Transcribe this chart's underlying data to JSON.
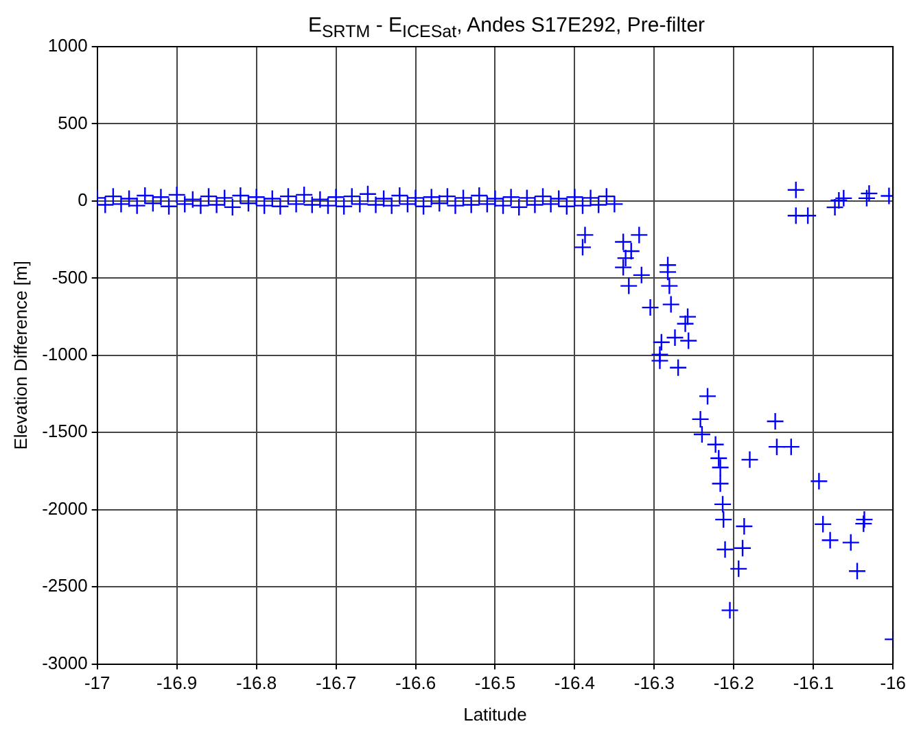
{
  "chart_data": {
    "type": "scatter",
    "title": "E$_{SRTM}$ - E$_{ICESat}$, Andes S17E292, Pre-filter",
    "xlabel": "Latitude",
    "ylabel": "Elevation Difference [m]",
    "xlim": [
      -17,
      -16
    ],
    "xticks": [
      -17,
      -16.9,
      -16.8,
      -16.7,
      -16.6,
      -16.5,
      -16.4,
      -16.3,
      -16.2,
      -16.1,
      -16
    ],
    "ylim": [
      -3000,
      1000
    ],
    "yticks": [
      -3000,
      -2500,
      -2000,
      -1500,
      -1000,
      -500,
      0,
      500,
      1000
    ],
    "grid": true,
    "marker": "cross",
    "legend": false,
    "series": [
      {
        "color": "#0000ff",
        "x": [
          -17,
          -16.99,
          -16.98,
          -16.97,
          -16.96,
          -16.95,
          -16.94,
          -16.93,
          -16.92,
          -16.91,
          -16.9,
          -16.89,
          -16.88,
          -16.87,
          -16.86,
          -16.85,
          -16.84,
          -16.83,
          -16.82,
          -16.81,
          -16.8,
          -16.79,
          -16.78,
          -16.77,
          -16.76,
          -16.75,
          -16.74,
          -16.73,
          -16.72,
          -16.71,
          -16.7,
          -16.69,
          -16.68,
          -16.67,
          -16.66,
          -16.65,
          -16.64,
          -16.63,
          -16.62,
          -16.61,
          -16.6,
          -16.59,
          -16.58,
          -16.57,
          -16.56,
          -16.55,
          -16.54,
          -16.53,
          -16.52,
          -16.51,
          -16.5,
          -16.49,
          -16.48,
          -16.47,
          -16.46,
          -16.45,
          -16.44,
          -16.43,
          -16.42,
          -16.41,
          -16.4,
          -16.39,
          -16.38,
          -16.37,
          -16.36,
          -16.35,
          -16.387,
          -16.39,
          -16.339,
          -16.319,
          -16.329,
          -16.336,
          -16.339,
          -16.316,
          -16.332,
          -16.283,
          -16.283,
          -16.281,
          -16.305,
          -16.279,
          -16.261,
          -16.258,
          -16.274,
          -16.257,
          -16.291,
          -16.293,
          -16.293,
          -16.27,
          -16.233,
          -16.242,
          -16.24,
          -16.223,
          -16.219,
          -16.217,
          -16.217,
          -16.214,
          -16.213,
          -16.211,
          -16.205,
          -16.194,
          -16.189,
          -16.187,
          -16.18,
          -16.148,
          -16.146,
          -16.128,
          -16.093,
          -16.088,
          -16.079,
          -16.053,
          -16.045,
          -16.036,
          -16.037,
          -16,
          -16.122,
          -16.122,
          -16.107,
          -16.068,
          -16.062,
          -16.073,
          -16.033,
          -16.03,
          -16.005
        ],
        "values": [
          20,
          -25,
          30,
          -20,
          15,
          -30,
          35,
          -15,
          25,
          -35,
          40,
          -20,
          10,
          -30,
          30,
          -25,
          20,
          -40,
          35,
          -15,
          25,
          -30,
          15,
          -35,
          30,
          -20,
          40,
          -25,
          10,
          -30,
          25,
          -35,
          30,
          -20,
          45,
          -25,
          15,
          -30,
          35,
          -20,
          20,
          -35,
          25,
          -15,
          30,
          -30,
          20,
          -25,
          35,
          -20,
          15,
          -30,
          25,
          -40,
          20,
          -25,
          30,
          -20,
          15,
          -35,
          25,
          -30,
          20,
          -25,
          30,
          -20,
          -220,
          -300,
          -265,
          -220,
          -325,
          -370,
          -430,
          -480,
          -550,
          -415,
          -460,
          -550,
          -690,
          -670,
          -795,
          -750,
          -885,
          -905,
          -915,
          -995,
          -1035,
          -1080,
          -1265,
          -1414,
          -1512,
          -1578,
          -1667,
          -1727,
          -1831,
          -1965,
          -2064,
          -2258,
          -2652,
          -2383,
          -2249,
          -2108,
          -1676,
          -1428,
          -1593,
          -1593,
          -1816,
          -2094,
          -2198,
          -2213,
          -2398,
          -2064,
          -2091,
          -2840,
          72,
          -95,
          -95,
          4,
          18,
          -41,
          18,
          49,
          33
        ]
      }
    ]
  }
}
